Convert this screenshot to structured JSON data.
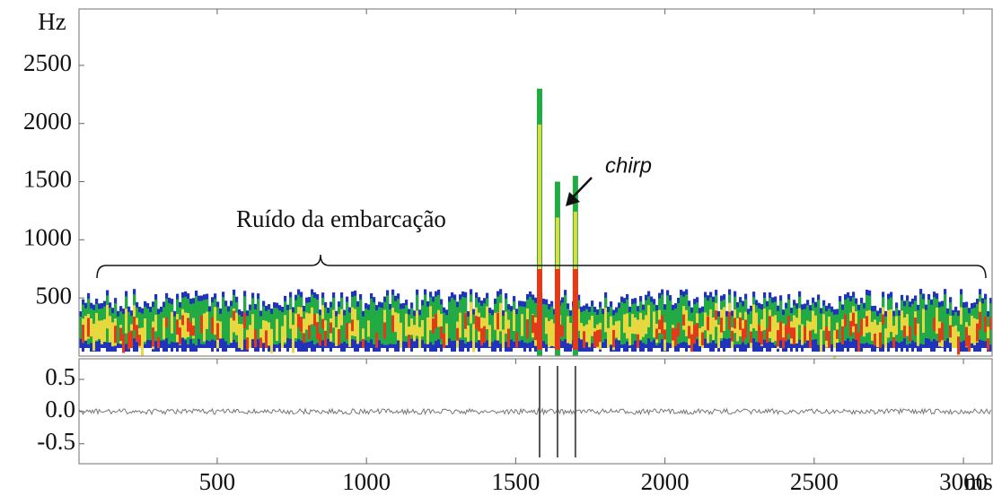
{
  "chart_data": [
    {
      "type": "spectrogram",
      "y_label": "Hz",
      "ylim": [
        0,
        2985
      ],
      "yticks": [
        500,
        1000,
        1500,
        2000,
        2500
      ],
      "xlim": [
        37,
        3096
      ],
      "annotations": [
        "Ruído da embarcação",
        "chirp"
      ]
    },
    {
      "type": "line",
      "x_label": "ms",
      "xlim": [
        37,
        3096
      ],
      "xticks": [
        500,
        1000,
        1500,
        2000,
        2500,
        3000
      ],
      "ylim": [
        -0.81,
        0.82
      ],
      "yticks": [
        {
          "value": 0.5,
          "label": "0.5"
        },
        {
          "value": 0,
          "label": "0.0"
        },
        -0.5
      ]
    }
  ]
}
